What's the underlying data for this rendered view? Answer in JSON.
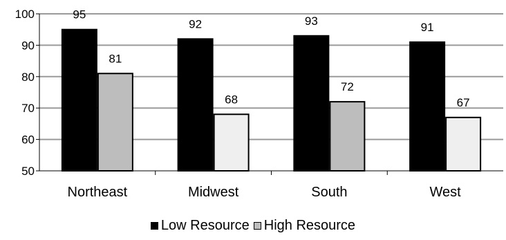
{
  "chart_data": {
    "type": "bar",
    "title": "",
    "xlabel": "",
    "ylabel": "",
    "ylim": [
      50,
      100
    ],
    "yticks": [
      50,
      60,
      70,
      80,
      90,
      100
    ],
    "grid": true,
    "legend_position": "bottom",
    "categories": [
      "Northeast",
      "Midwest",
      "South",
      "West"
    ],
    "series": [
      {
        "name": "Low Resource",
        "values": [
          95,
          92,
          93,
          91
        ],
        "color": "#000000"
      },
      {
        "name": "High Resource",
        "values": [
          81,
          68,
          72,
          67
        ],
        "colors": [
          "#bdbdbd",
          "#efefef",
          "#bdbdbd",
          "#efefef"
        ],
        "legend_color": "#bdbdbd"
      }
    ]
  }
}
